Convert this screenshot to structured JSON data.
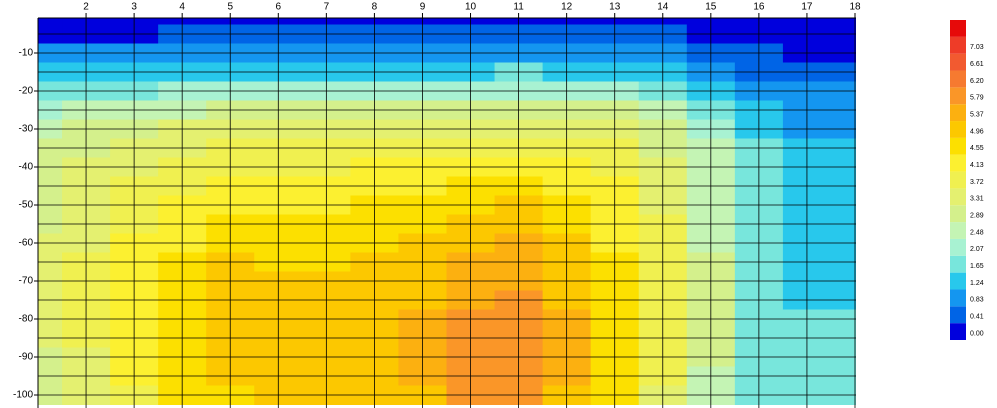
{
  "chart_data": {
    "type": "contour",
    "x": [
      1,
      2,
      3,
      4,
      5,
      6,
      7,
      8,
      9,
      10,
      11,
      12,
      13,
      14,
      15,
      16,
      17,
      18
    ],
    "y": [
      0,
      -5,
      -10,
      -15,
      -20,
      -25,
      -30,
      -35,
      -40,
      -45,
      -50,
      -55,
      -60,
      -65,
      -70,
      -75,
      -80,
      -85,
      -90,
      -95,
      -100
    ],
    "z": [
      [
        0.1,
        0.1,
        0.1,
        0.2,
        0.2,
        0.2,
        0.2,
        0.2,
        0.2,
        0.2,
        0.3,
        0.2,
        0.2,
        0.2,
        0.1,
        0.1,
        0.1,
        0.1
      ],
      [
        0.4,
        0.4,
        0.4,
        0.5,
        0.5,
        0.5,
        0.5,
        0.5,
        0.6,
        0.6,
        0.6,
        0.6,
        0.5,
        0.5,
        0.4,
        0.3,
        0.3,
        0.3
      ],
      [
        0.9,
        0.9,
        0.9,
        1.0,
        1.0,
        1.0,
        1.0,
        1.0,
        1.0,
        1.1,
        1.1,
        1.1,
        1.0,
        0.9,
        0.7,
        0.5,
        0.4,
        0.4
      ],
      [
        1.3,
        1.3,
        1.4,
        1.5,
        1.5,
        1.5,
        1.5,
        1.5,
        1.6,
        1.6,
        1.7,
        1.6,
        1.5,
        1.4,
        1.1,
        0.8,
        0.7,
        0.7
      ],
      [
        1.8,
        1.9,
        2.0,
        2.1,
        2.2,
        2.2,
        2.2,
        2.2,
        2.3,
        2.3,
        2.4,
        2.3,
        2.2,
        2.0,
        1.6,
        1.1,
        0.9,
        0.9
      ],
      [
        2.4,
        2.5,
        2.6,
        2.8,
        2.9,
        2.9,
        2.9,
        2.9,
        3.0,
        3.1,
        3.1,
        3.0,
        2.9,
        2.6,
        2.0,
        1.3,
        1.0,
        1.0
      ],
      [
        2.8,
        3.0,
        3.2,
        3.4,
        3.5,
        3.5,
        3.5,
        3.5,
        3.6,
        3.7,
        3.7,
        3.6,
        3.4,
        3.0,
        2.3,
        1.5,
        1.0,
        1.0
      ],
      [
        3.0,
        3.3,
        3.5,
        3.7,
        3.9,
        3.9,
        3.9,
        3.9,
        4.0,
        4.1,
        4.1,
        4.0,
        3.8,
        3.3,
        2.5,
        1.7,
        1.3,
        1.3
      ],
      [
        3.1,
        3.4,
        3.7,
        3.9,
        4.1,
        4.1,
        4.1,
        4.2,
        4.3,
        4.4,
        4.4,
        4.3,
        4.0,
        3.5,
        2.6,
        1.9,
        1.5,
        1.5
      ],
      [
        3.2,
        3.5,
        3.8,
        4.1,
        4.3,
        4.3,
        4.3,
        4.4,
        4.5,
        4.7,
        4.7,
        4.5,
        4.2,
        3.6,
        2.7,
        2.0,
        1.6,
        1.6
      ],
      [
        3.3,
        3.6,
        3.9,
        4.2,
        4.5,
        4.5,
        4.5,
        4.6,
        4.7,
        4.9,
        5.0,
        4.7,
        4.3,
        3.7,
        2.8,
        2.0,
        1.6,
        1.6
      ],
      [
        3.3,
        3.7,
        4.1,
        4.4,
        4.7,
        4.7,
        4.7,
        4.8,
        4.9,
        5.2,
        5.3,
        4.9,
        4.4,
        3.8,
        2.8,
        2.0,
        1.6,
        1.6
      ],
      [
        3.4,
        3.7,
        4.2,
        4.5,
        4.8,
        4.8,
        4.8,
        4.9,
        5.0,
        5.3,
        5.4,
        5.0,
        4.5,
        3.8,
        2.8,
        2.0,
        1.6,
        1.6
      ],
      [
        3.4,
        3.8,
        4.3,
        4.6,
        5.0,
        4.9,
        4.9,
        5.0,
        5.1,
        5.5,
        5.6,
        5.1,
        4.6,
        3.9,
        2.9,
        2.0,
        1.6,
        1.6
      ],
      [
        3.4,
        3.8,
        4.3,
        4.7,
        5.0,
        5.0,
        5.0,
        5.1,
        5.2,
        5.6,
        5.7,
        5.2,
        4.6,
        3.9,
        2.9,
        2.0,
        1.6,
        1.6
      ],
      [
        3.4,
        3.8,
        4.4,
        4.8,
        5.1,
        5.1,
        5.1,
        5.2,
        5.3,
        5.7,
        5.8,
        5.3,
        4.7,
        3.9,
        2.9,
        2.0,
        1.6,
        1.6
      ],
      [
        3.4,
        3.8,
        4.4,
        4.8,
        5.1,
        5.1,
        5.1,
        5.2,
        5.4,
        5.8,
        5.9,
        5.4,
        4.7,
        3.9,
        2.9,
        2.0,
        1.7,
        1.7
      ],
      [
        3.4,
        3.8,
        4.4,
        4.9,
        5.2,
        5.2,
        5.3,
        5.3,
        5.5,
        5.9,
        6.1,
        5.5,
        4.8,
        3.9,
        2.9,
        2.0,
        1.7,
        1.7
      ],
      [
        3.3,
        3.7,
        4.3,
        4.8,
        5.1,
        5.2,
        5.2,
        5.2,
        5.5,
        6.0,
        6.1,
        5.5,
        4.8,
        3.9,
        2.9,
        2.0,
        1.7,
        1.7
      ],
      [
        3.2,
        3.6,
        4.2,
        4.7,
        5.0,
        5.1,
        5.1,
        5.1,
        5.4,
        5.9,
        6.0,
        5.4,
        4.7,
        3.8,
        2.8,
        2.0,
        1.7,
        1.7
      ],
      [
        3.1,
        3.5,
        4.1,
        4.6,
        4.9,
        5.0,
        5.0,
        5.0,
        5.3,
        5.8,
        5.9,
        5.3,
        4.6,
        3.7,
        2.7,
        2.0,
        1.7,
        1.7
      ]
    ],
    "levels": [
      {
        "value": 0,
        "label": "0.00"
      },
      0.41,
      0.83,
      1.24,
      1.65,
      2.07,
      2.48,
      2.89,
      3.31,
      3.72,
      4.13,
      4.55,
      4.96,
      5.37,
      5.79,
      {
        "value": 6.2,
        "label": "6.20"
      },
      6.61,
      7.03
    ],
    "colors": [
      "#0000dd",
      "#0064e6",
      "#1496f0",
      "#28c8ec",
      "#78e6dc",
      "#a8f2d2",
      "#c4f4b4",
      "#d4f08c",
      "#e4f070",
      "#f0f050",
      "#fcf030",
      "#fce000",
      "#fcc800",
      "#fcb010",
      "#fa9628",
      "#f67a30",
      "#f25a30",
      "#ee3c28",
      "#e60a0a"
    ],
    "xlim": [
      1,
      18
    ],
    "ylim": [
      0,
      -100
    ],
    "xticks": [
      2,
      3,
      4,
      5,
      6,
      7,
      8,
      9,
      10,
      11,
      12,
      13,
      14,
      15,
      16,
      17,
      18
    ],
    "yticks": [
      -10,
      -20,
      -30,
      -40,
      -50,
      -60,
      -70,
      -80,
      -90,
      -100
    ],
    "grid": true
  }
}
